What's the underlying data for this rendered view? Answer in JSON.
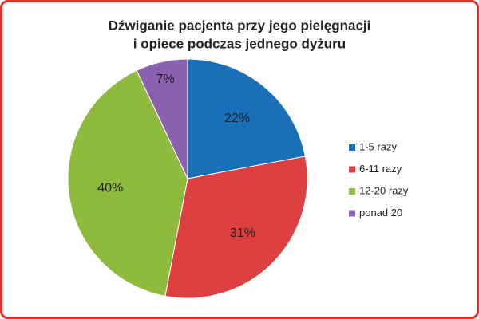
{
  "chart_data": {
    "type": "pie",
    "title": [
      "Dźwiganie pacjenta przy jego pielęgnacji",
      "i opiece podczas jednego dyżuru"
    ],
    "categories": [
      "1-5 razy",
      "6-11 razy",
      "12-20 razy",
      "ponad 20"
    ],
    "values": [
      22,
      31,
      40,
      7
    ],
    "value_labels": [
      "22%",
      "31%",
      "40%",
      "7%"
    ],
    "colors": [
      "#1a70b8",
      "#dc4040",
      "#8ebb3e",
      "#8a62b0"
    ],
    "legend": "right"
  }
}
